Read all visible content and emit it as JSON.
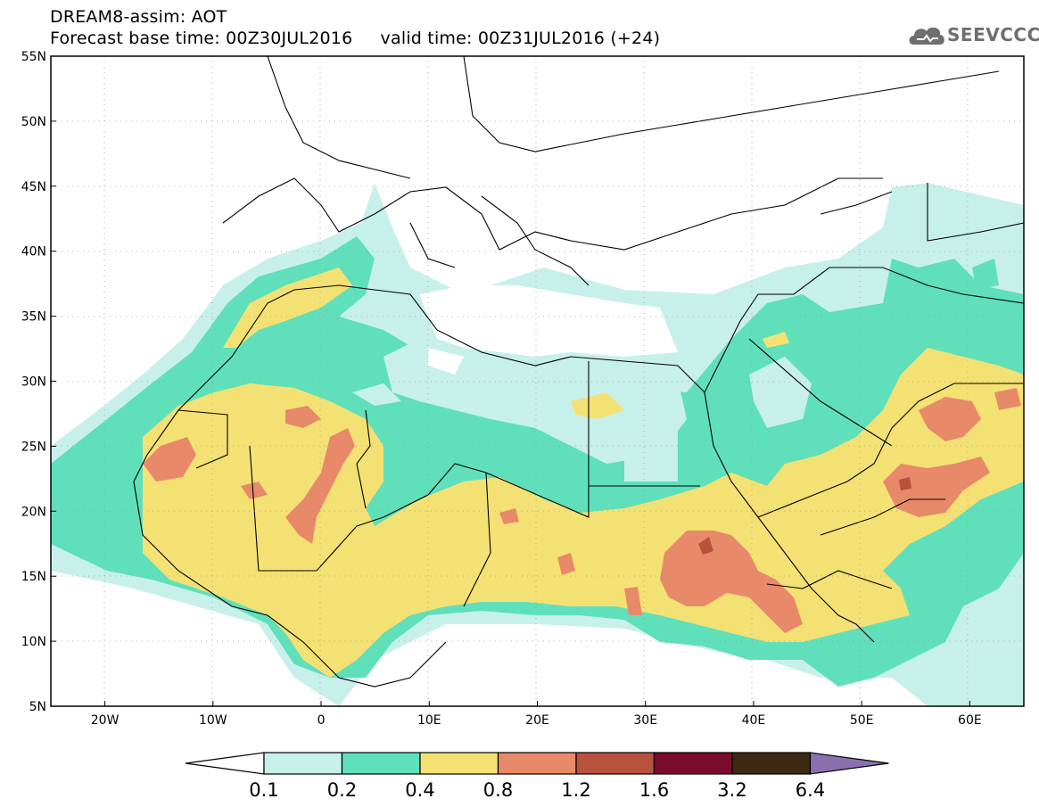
{
  "header": {
    "title_line1": "DREAM8-assim: AOT",
    "title_line2": "Forecast base time: 00Z30JUL2016     valid time: 00Z31JUL2016 (+24)",
    "logo_text": "SEEVCCC"
  },
  "map": {
    "lon_range": [
      -25,
      65
    ],
    "lat_range": [
      5,
      55
    ],
    "lon_ticks": [
      "20W",
      "10W",
      "0",
      "10E",
      "20E",
      "30E",
      "40E",
      "50E",
      "60E"
    ],
    "lat_ticks": [
      "5N",
      "10N",
      "15N",
      "20N",
      "25N",
      "30N",
      "35N",
      "40N",
      "45N",
      "50N",
      "55N"
    ],
    "gridlines": true
  },
  "colorbar": {
    "labels": [
      "0.1",
      "0.2",
      "0.4",
      "0.8",
      "1.2",
      "1.6",
      "3.2",
      "6.4"
    ],
    "colors": [
      "#c7f0ea",
      "#5fe0bb",
      "#f4e173",
      "#e8896a",
      "#b8523d",
      "#7c0c2d",
      "#3c2813",
      "#8c6fae"
    ]
  }
}
